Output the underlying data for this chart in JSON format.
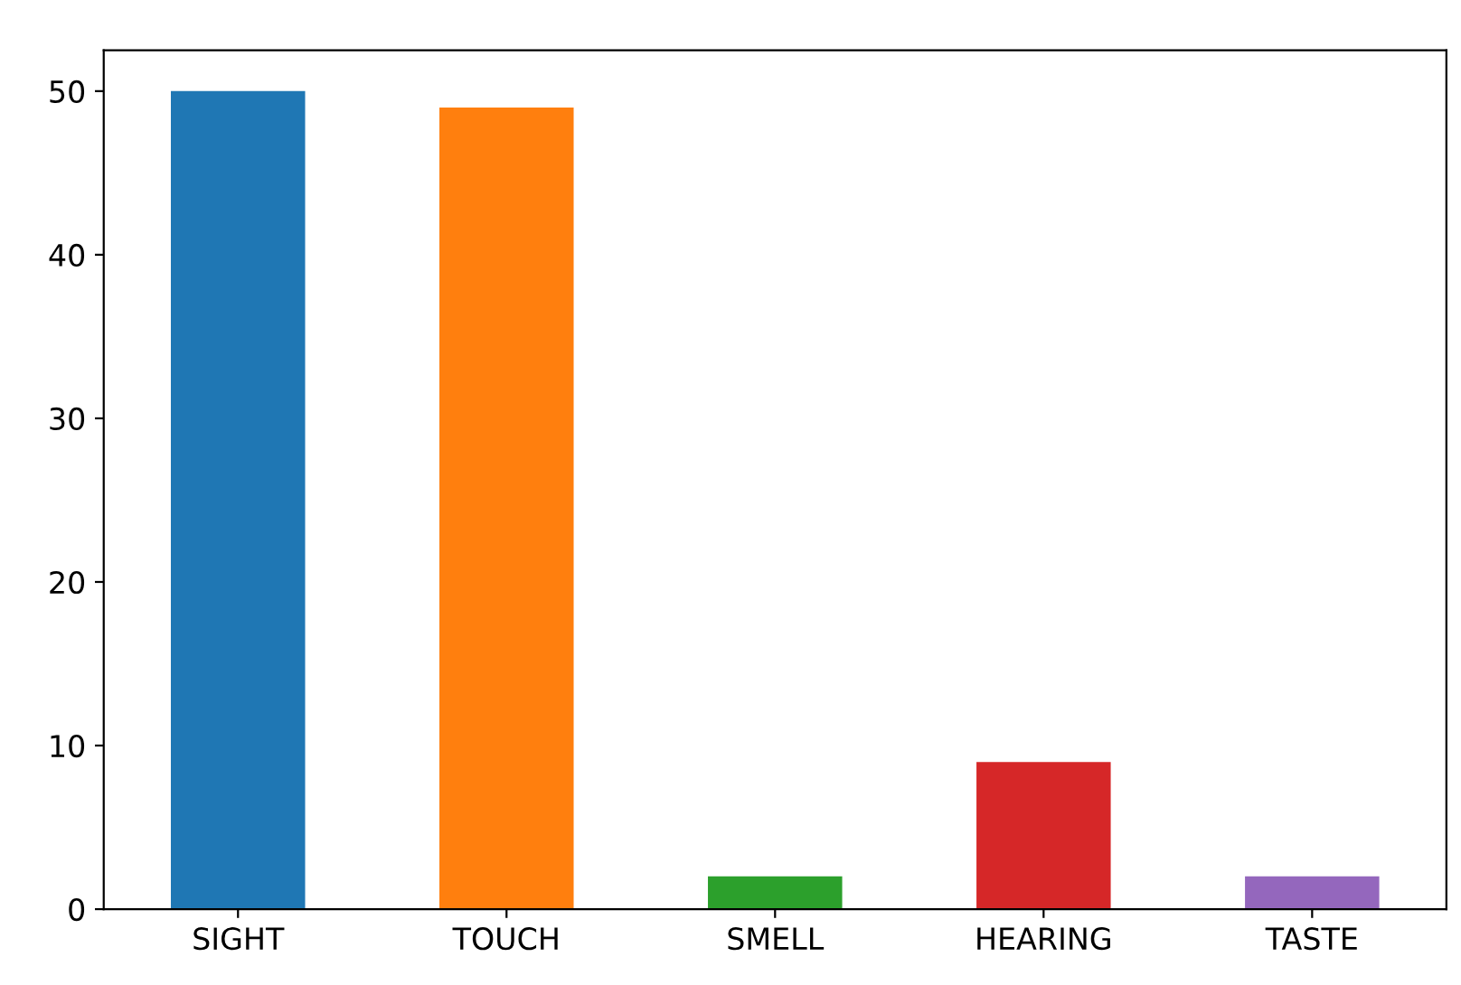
{
  "chart_data": {
    "type": "bar",
    "categories": [
      "SIGHT",
      "TOUCH",
      "SMELL",
      "HEARING",
      "TASTE"
    ],
    "values": [
      50,
      49,
      2,
      9,
      2
    ],
    "colors": [
      "#1f77b4",
      "#ff7f0e",
      "#2ca02c",
      "#d62728",
      "#9467bd"
    ],
    "ylim": [
      0,
      52.5
    ],
    "yticks": [
      0,
      10,
      20,
      30,
      40,
      50
    ],
    "grid": false
  }
}
